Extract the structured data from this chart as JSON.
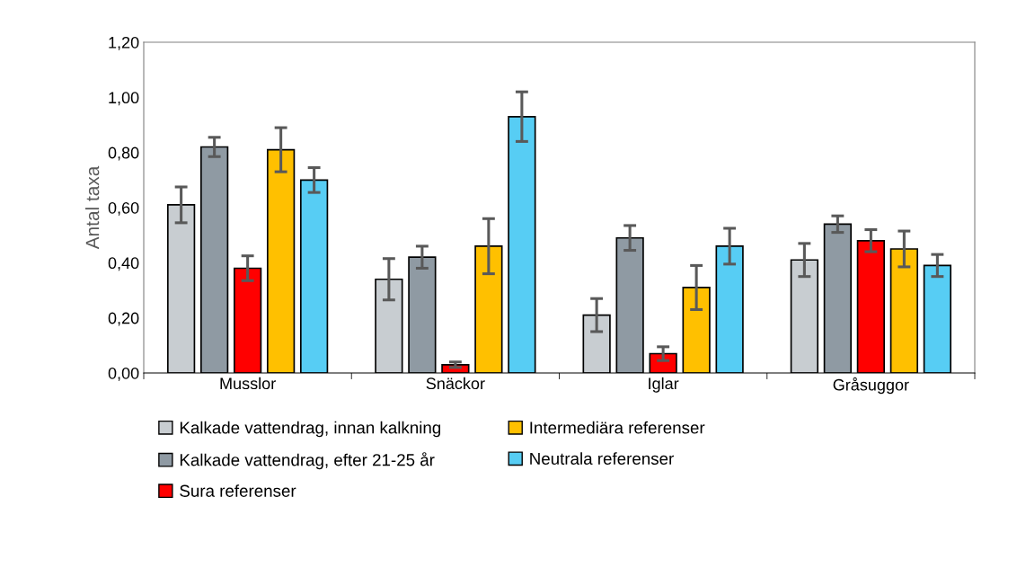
{
  "chart_data": {
    "type": "bar",
    "ylabel": "Antal taxa",
    "categories": [
      "Musslor",
      "Snäckor",
      "Iglar",
      "Gråsuggor"
    ],
    "series": [
      {
        "name": "Kalkade vattendrag, innan kalkning",
        "color": "#c8cdd1",
        "values": [
          0.61,
          0.34,
          0.21,
          0.41
        ],
        "errors": [
          0.065,
          0.075,
          0.06,
          0.06
        ]
      },
      {
        "name": "Kalkade vattendrag, efter 21-25 år",
        "color": "#8f9aa3",
        "values": [
          0.82,
          0.42,
          0.49,
          0.54
        ],
        "errors": [
          0.035,
          0.04,
          0.045,
          0.03
        ]
      },
      {
        "name": "Sura referenser",
        "color": "#ff0000",
        "values": [
          0.38,
          0.03,
          0.07,
          0.48
        ],
        "errors": [
          0.045,
          0.01,
          0.025,
          0.04
        ]
      },
      {
        "name": "Intermediära referenser",
        "color": "#ffc000",
        "values": [
          0.81,
          0.46,
          0.31,
          0.45
        ],
        "errors": [
          0.08,
          0.1,
          0.08,
          0.065
        ]
      },
      {
        "name": "Neutrala referenser",
        "color": "#57cdf4",
        "values": [
          0.7,
          0.93,
          0.46,
          0.39
        ],
        "errors": [
          0.045,
          0.09,
          0.065,
          0.04
        ]
      }
    ],
    "ylim": [
      0,
      1.2
    ],
    "yticks": [
      {
        "value": 0,
        "label": "0,00"
      },
      {
        "value": 0.2,
        "label": "0,20"
      },
      {
        "value": 0.4,
        "label": "0,40"
      },
      {
        "value": 0.6,
        "label": "0,60"
      },
      {
        "value": 0.8,
        "label": "0,80"
      },
      {
        "value": 1.0,
        "label": "1,00"
      },
      {
        "value": 1.2,
        "label": "1,20"
      }
    ],
    "grid": false,
    "legend": "bottom"
  }
}
